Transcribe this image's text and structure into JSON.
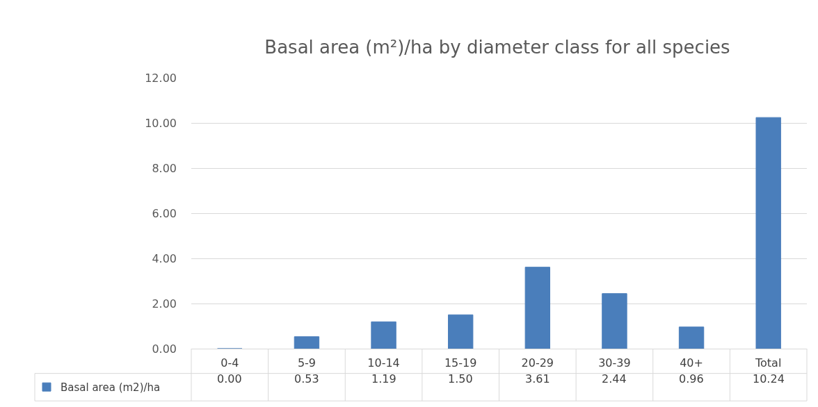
{
  "chart_data": {
    "type": "bar",
    "title": "Basal area (m²)/ha by diameter class for all species",
    "categories": [
      "0-4",
      "5-9",
      "10-14",
      "15-19",
      "20-29",
      "30-39",
      "40+",
      "Total"
    ],
    "series": [
      {
        "name": "Basal area (m2)/ha",
        "color": "#4a7ebb",
        "values": [
          0.0,
          0.53,
          1.19,
          1.5,
          3.61,
          2.44,
          0.96,
          10.24
        ],
        "value_labels": [
          "0.00",
          "0.53",
          "1.19",
          "1.50",
          "3.61",
          "2.44",
          "0.96",
          "10.24"
        ]
      }
    ],
    "ylim": [
      0,
      12
    ],
    "yticks": [
      {
        "value": 0,
        "label": "0.00"
      },
      {
        "value": 2,
        "label": "2.00"
      },
      {
        "value": 4,
        "label": "4.00"
      },
      {
        "value": 6,
        "label": "6.00"
      },
      {
        "value": 8,
        "label": "8.00"
      },
      {
        "value": 10,
        "label": "10.00"
      },
      {
        "value": 12,
        "label": "12.00"
      }
    ],
    "grid": "y",
    "legend": "bottom left"
  }
}
